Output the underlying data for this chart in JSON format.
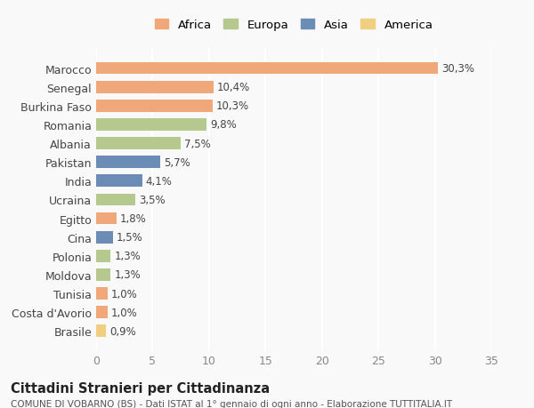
{
  "countries": [
    "Marocco",
    "Senegal",
    "Burkina Faso",
    "Romania",
    "Albania",
    "Pakistan",
    "India",
    "Ucraina",
    "Egitto",
    "Cina",
    "Polonia",
    "Moldova",
    "Tunisia",
    "Costa d'Avorio",
    "Brasile"
  ],
  "values": [
    30.3,
    10.4,
    10.3,
    9.8,
    7.5,
    5.7,
    4.1,
    3.5,
    1.8,
    1.5,
    1.3,
    1.3,
    1.0,
    1.0,
    0.9
  ],
  "labels": [
    "30,3%",
    "10,4%",
    "10,3%",
    "9,8%",
    "7,5%",
    "5,7%",
    "4,1%",
    "3,5%",
    "1,8%",
    "1,5%",
    "1,3%",
    "1,3%",
    "1,0%",
    "1,0%",
    "0,9%"
  ],
  "continents": [
    "Africa",
    "Africa",
    "Africa",
    "Europa",
    "Europa",
    "Asia",
    "Asia",
    "Europa",
    "Africa",
    "Asia",
    "Europa",
    "Europa",
    "Africa",
    "Africa",
    "America"
  ],
  "colors": {
    "Africa": "#F0A87A",
    "Europa": "#B5C98E",
    "Asia": "#6B8DB5",
    "America": "#F0D080"
  },
  "legend_order": [
    "Africa",
    "Europa",
    "Asia",
    "America"
  ],
  "xlim": [
    0,
    35
  ],
  "xticks": [
    0,
    5,
    10,
    15,
    20,
    25,
    30,
    35
  ],
  "title": "Cittadini Stranieri per Cittadinanza",
  "subtitle": "COMUNE DI VOBARNO (BS) - Dati ISTAT al 1° gennaio di ogni anno - Elaborazione TUTTITALIA.IT",
  "bg_color": "#f9f9f9",
  "grid_color": "#ffffff",
  "bar_height": 0.65
}
